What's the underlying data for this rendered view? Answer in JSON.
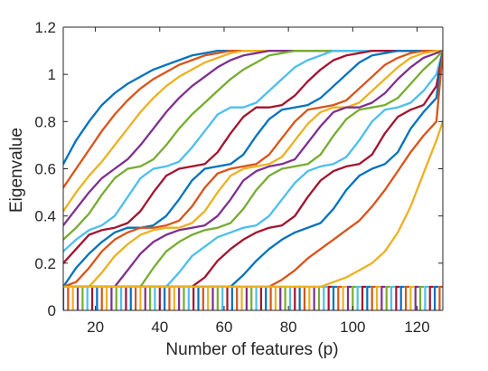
{
  "chart_data": {
    "type": "line",
    "title": "",
    "xlabel": "Number of features (p)",
    "ylabel": "Eigenvalue",
    "xlim": [
      10,
      128
    ],
    "ylim": [
      0,
      1.2
    ],
    "xticks": [
      20,
      40,
      60,
      80,
      100,
      120
    ],
    "yticks": [
      0,
      0.2,
      0.4,
      0.6,
      0.8,
      1,
      1.2
    ],
    "xtick_labels": [
      "20",
      "40",
      "60",
      "80",
      "100",
      "120"
    ],
    "ytick_labels": [
      "0",
      "0.2",
      "0.4",
      "0.6",
      "0.8",
      "1",
      "1.2"
    ],
    "grid": false,
    "legend": "none",
    "x": [
      10,
      14,
      18,
      22,
      26,
      30,
      34,
      38,
      42,
      46,
      50,
      54,
      58,
      62,
      66,
      70,
      74,
      78,
      82,
      86,
      90,
      94,
      98,
      102,
      106,
      110,
      114,
      118,
      122,
      126,
      128
    ],
    "colors": [
      "#0072BD",
      "#D95319",
      "#EDB120",
      "#7E2F8E",
      "#77AC30",
      "#4DBEEE",
      "#A2142F"
    ],
    "series": [
      {
        "values": [
          0.62,
          0.72,
          0.8,
          0.87,
          0.92,
          0.96,
          0.99,
          1.02,
          1.04,
          1.06,
          1.08,
          1.09,
          1.1,
          1.1,
          1.1,
          1.1,
          1.1,
          1.1,
          1.1,
          1.1,
          1.1,
          1.1,
          1.1,
          1.1,
          1.1,
          1.1,
          1.1,
          1.1,
          1.1,
          1.1,
          1.1
        ]
      },
      {
        "values": [
          0.52,
          0.6,
          0.68,
          0.76,
          0.83,
          0.89,
          0.94,
          0.98,
          1.01,
          1.04,
          1.06,
          1.08,
          1.09,
          1.1,
          1.1,
          1.1,
          1.1,
          1.1,
          1.1,
          1.1,
          1.1,
          1.1,
          1.1,
          1.1,
          1.1,
          1.1,
          1.1,
          1.1,
          1.1,
          1.1,
          1.1
        ]
      },
      {
        "values": [
          0.42,
          0.5,
          0.57,
          0.63,
          0.7,
          0.77,
          0.84,
          0.9,
          0.95,
          0.99,
          1.02,
          1.05,
          1.07,
          1.09,
          1.1,
          1.1,
          1.1,
          1.1,
          1.1,
          1.1,
          1.1,
          1.1,
          1.1,
          1.1,
          1.1,
          1.1,
          1.1,
          1.1,
          1.1,
          1.1,
          1.1
        ]
      },
      {
        "values": [
          0.36,
          0.43,
          0.5,
          0.56,
          0.6,
          0.64,
          0.7,
          0.77,
          0.84,
          0.9,
          0.95,
          0.99,
          1.03,
          1.06,
          1.08,
          1.09,
          1.1,
          1.1,
          1.1,
          1.1,
          1.1,
          1.1,
          1.1,
          1.1,
          1.1,
          1.1,
          1.1,
          1.1,
          1.1,
          1.1,
          1.1
        ]
      },
      {
        "values": [
          0.3,
          0.35,
          0.41,
          0.49,
          0.56,
          0.6,
          0.61,
          0.64,
          0.7,
          0.77,
          0.83,
          0.88,
          0.93,
          0.98,
          1.02,
          1.05,
          1.08,
          1.09,
          1.1,
          1.1,
          1.1,
          1.1,
          1.1,
          1.1,
          1.1,
          1.1,
          1.1,
          1.1,
          1.1,
          1.1,
          1.1
        ]
      },
      {
        "values": [
          0.25,
          0.3,
          0.34,
          0.36,
          0.4,
          0.48,
          0.56,
          0.6,
          0.61,
          0.63,
          0.69,
          0.76,
          0.83,
          0.86,
          0.86,
          0.88,
          0.93,
          0.98,
          1.03,
          1.06,
          1.08,
          1.1,
          1.1,
          1.1,
          1.1,
          1.1,
          1.1,
          1.1,
          1.1,
          1.1,
          1.1
        ]
      },
      {
        "values": [
          0.2,
          0.26,
          0.32,
          0.34,
          0.35,
          0.37,
          0.42,
          0.5,
          0.57,
          0.6,
          0.61,
          0.62,
          0.67,
          0.75,
          0.82,
          0.86,
          0.86,
          0.87,
          0.91,
          0.97,
          1.02,
          1.06,
          1.08,
          1.09,
          1.1,
          1.1,
          1.1,
          1.1,
          1.1,
          1.1,
          1.1
        ]
      },
      {
        "values": [
          0.1,
          0.18,
          0.24,
          0.29,
          0.33,
          0.35,
          0.35,
          0.36,
          0.4,
          0.47,
          0.55,
          0.6,
          0.61,
          0.62,
          0.66,
          0.74,
          0.81,
          0.85,
          0.86,
          0.87,
          0.9,
          0.95,
          1.0,
          1.05,
          1.08,
          1.09,
          1.1,
          1.1,
          1.1,
          1.1,
          1.1
        ]
      },
      {
        "values": [
          0.1,
          0.12,
          0.18,
          0.25,
          0.3,
          0.33,
          0.35,
          0.35,
          0.36,
          0.38,
          0.44,
          0.52,
          0.58,
          0.6,
          0.61,
          0.62,
          0.66,
          0.73,
          0.8,
          0.85,
          0.86,
          0.87,
          0.89,
          0.94,
          0.99,
          1.04,
          1.07,
          1.09,
          1.1,
          1.1,
          1.1
        ]
      },
      {
        "values": [
          0.1,
          0.1,
          0.1,
          0.16,
          0.23,
          0.28,
          0.32,
          0.34,
          0.35,
          0.35,
          0.37,
          0.42,
          0.5,
          0.57,
          0.6,
          0.61,
          0.62,
          0.65,
          0.72,
          0.79,
          0.84,
          0.86,
          0.86,
          0.88,
          0.93,
          0.98,
          1.03,
          1.07,
          1.09,
          1.1,
          1.1
        ]
      },
      {
        "values": [
          0.1,
          0.1,
          0.1,
          0.1,
          0.1,
          0.17,
          0.24,
          0.29,
          0.32,
          0.34,
          0.35,
          0.36,
          0.4,
          0.47,
          0.55,
          0.59,
          0.61,
          0.62,
          0.64,
          0.71,
          0.78,
          0.84,
          0.86,
          0.86,
          0.88,
          0.92,
          0.98,
          1.03,
          1.07,
          1.09,
          1.1
        ]
      },
      {
        "values": [
          0.1,
          0.1,
          0.1,
          0.1,
          0.1,
          0.1,
          0.1,
          0.18,
          0.25,
          0.29,
          0.32,
          0.34,
          0.35,
          0.37,
          0.43,
          0.51,
          0.57,
          0.6,
          0.61,
          0.62,
          0.66,
          0.74,
          0.81,
          0.85,
          0.86,
          0.87,
          0.9,
          0.96,
          1.02,
          1.07,
          1.1
        ]
      },
      {
        "values": [
          0.1,
          0.1,
          0.1,
          0.1,
          0.1,
          0.1,
          0.1,
          0.1,
          0.1,
          0.16,
          0.23,
          0.27,
          0.31,
          0.33,
          0.35,
          0.36,
          0.4,
          0.47,
          0.54,
          0.59,
          0.61,
          0.62,
          0.65,
          0.72,
          0.8,
          0.85,
          0.86,
          0.88,
          0.93,
          1.0,
          1.1
        ]
      },
      {
        "values": [
          0.1,
          0.1,
          0.1,
          0.1,
          0.1,
          0.1,
          0.1,
          0.1,
          0.1,
          0.1,
          0.1,
          0.14,
          0.21,
          0.26,
          0.3,
          0.33,
          0.35,
          0.36,
          0.4,
          0.48,
          0.55,
          0.59,
          0.61,
          0.62,
          0.66,
          0.75,
          0.82,
          0.85,
          0.87,
          0.95,
          1.1
        ]
      },
      {
        "values": [
          0.1,
          0.1,
          0.1,
          0.1,
          0.1,
          0.1,
          0.1,
          0.1,
          0.1,
          0.1,
          0.1,
          0.1,
          0.1,
          0.1,
          0.15,
          0.21,
          0.26,
          0.3,
          0.33,
          0.35,
          0.37,
          0.43,
          0.51,
          0.57,
          0.6,
          0.62,
          0.67,
          0.77,
          0.84,
          0.9,
          1.1
        ]
      },
      {
        "values": [
          0.1,
          0.1,
          0.1,
          0.1,
          0.1,
          0.1,
          0.1,
          0.1,
          0.1,
          0.1,
          0.1,
          0.1,
          0.1,
          0.1,
          0.1,
          0.1,
          0.1,
          0.13,
          0.17,
          0.22,
          0.26,
          0.3,
          0.34,
          0.38,
          0.44,
          0.51,
          0.59,
          0.67,
          0.74,
          0.8,
          1.1
        ]
      },
      {
        "values": [
          0.1,
          0.1,
          0.1,
          0.1,
          0.1,
          0.1,
          0.1,
          0.1,
          0.1,
          0.1,
          0.1,
          0.1,
          0.1,
          0.1,
          0.1,
          0.1,
          0.1,
          0.1,
          0.1,
          0.1,
          0.1,
          0.12,
          0.14,
          0.17,
          0.2,
          0.25,
          0.33,
          0.44,
          0.58,
          0.72,
          0.8
        ]
      }
    ],
    "zero_eigenvalue_lines": {
      "x_start": 10,
      "x_end": 128,
      "step": 1.5,
      "high": 0.1,
      "low": 0
    }
  }
}
